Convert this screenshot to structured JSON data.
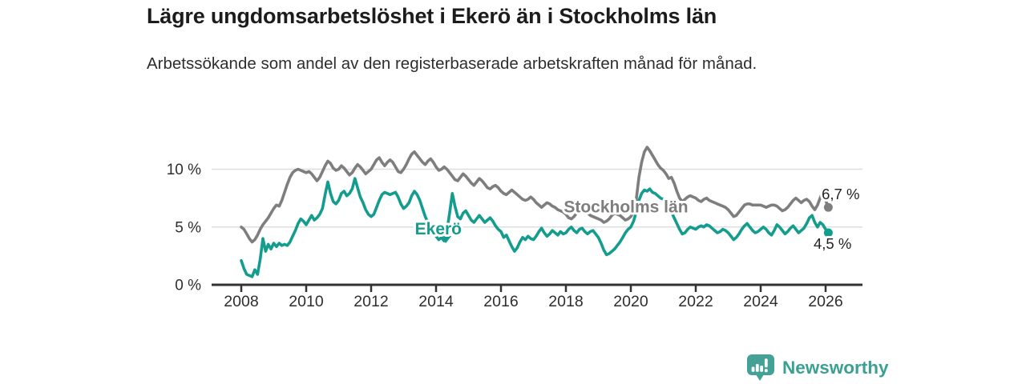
{
  "title": "Lägre ungdomsarbetslöshet i Ekerö än i Stockholms län",
  "subtitle": "Arbetssökande som andel av den registerbaserade arbetskraften månad för månad.",
  "brand": {
    "name": "Newsworthy",
    "color": "#3aa093",
    "icon": "bar-chart-bubble-icon"
  },
  "colors": {
    "ekero_line": "#149d8e",
    "stockholm_line": "#7e7e7e",
    "axis": "#333333",
    "grid": "#dedede",
    "text": "#2e2e2e"
  },
  "chart_data": {
    "type": "line",
    "title": "Lägre ungdomsarbetslöshet i Ekerö än i Stockholms län",
    "subtitle": "Arbetssökande som andel av den registerbaserade arbetskraften månad för månad.",
    "xlabel": "",
    "ylabel": "",
    "unit": "%",
    "x_start_year": 2008,
    "x_frequency": "monthly",
    "xlim": [
      2007.1,
      2027.1
    ],
    "ylim": [
      0,
      12.5
    ],
    "grid": "horizontal",
    "legend_position": "inline-labels",
    "x_ticks": [
      2008,
      2010,
      2012,
      2014,
      2016,
      2018,
      2020,
      2022,
      2024,
      2026
    ],
    "x_tick_labels": [
      "2008",
      "2010",
      "2012",
      "2014",
      "2016",
      "2018",
      "2020",
      "2022",
      "2024",
      "2026"
    ],
    "y_tick_values": [
      0,
      5,
      10
    ],
    "y_tick_labels": [
      "0 %",
      "5 %",
      "10 %"
    ],
    "series": [
      {
        "name": "Stockholms län",
        "color": "#7e7e7e",
        "end_value": 6.7,
        "end_label": "6,7 %",
        "values": [
          5.0,
          4.8,
          4.4,
          4.0,
          3.7,
          3.9,
          4.3,
          4.8,
          5.2,
          5.5,
          5.8,
          6.2,
          6.6,
          6.9,
          6.8,
          7.3,
          8.0,
          8.7,
          9.3,
          9.7,
          9.9,
          10.0,
          9.9,
          9.8,
          9.7,
          9.8,
          9.6,
          9.3,
          9.0,
          9.3,
          9.8,
          10.3,
          10.7,
          10.5,
          10.1,
          9.9,
          10.0,
          10.3,
          10.1,
          9.8,
          9.5,
          9.7,
          10.1,
          10.4,
          10.2,
          9.9,
          9.6,
          9.8,
          10.0,
          10.4,
          10.8,
          11.0,
          10.6,
          10.3,
          10.6,
          10.8,
          10.6,
          10.2,
          9.8,
          9.7,
          10.0,
          10.4,
          10.9,
          11.3,
          11.5,
          11.2,
          10.9,
          10.6,
          10.4,
          10.7,
          10.9,
          10.6,
          10.2,
          9.9,
          10.0,
          10.2,
          10.0,
          9.7,
          9.4,
          9.1,
          9.0,
          9.3,
          9.6,
          9.4,
          9.1,
          8.8,
          8.6,
          8.9,
          9.2,
          9.0,
          8.7,
          8.4,
          8.3,
          8.5,
          8.6,
          8.4,
          8.1,
          7.9,
          7.8,
          8.0,
          8.2,
          8.0,
          7.8,
          7.6,
          7.4,
          7.3,
          7.4,
          7.6,
          7.4,
          7.1,
          6.9,
          6.7,
          6.9,
          7.1,
          7.0,
          6.8,
          6.7,
          6.5,
          6.4,
          6.3,
          6.1,
          5.8,
          5.7,
          5.9,
          6.2,
          6.4,
          6.5,
          6.4,
          6.2,
          6.0,
          5.9,
          5.8,
          5.7,
          5.6,
          5.4,
          5.5,
          5.7,
          6.0,
          6.2,
          6.1,
          6.0,
          5.8,
          5.6,
          5.7,
          5.9,
          6.3,
          7.4,
          9.3,
          10.6,
          11.5,
          11.9,
          11.6,
          11.2,
          10.8,
          10.4,
          10.1,
          9.9,
          9.6,
          9.2,
          9.3,
          8.8,
          8.1,
          7.5,
          7.2,
          7.4,
          7.6,
          7.7,
          7.6,
          7.5,
          7.3,
          7.2,
          7.4,
          7.5,
          7.3,
          7.2,
          7.1,
          7.0,
          6.9,
          6.8,
          6.7,
          6.5,
          6.2,
          5.9,
          6.0,
          6.3,
          6.6,
          6.9,
          7.0,
          7.0,
          6.9,
          6.9,
          6.9,
          6.9,
          6.8,
          6.7,
          6.8,
          6.9,
          6.9,
          6.8,
          6.6,
          6.4,
          6.5,
          6.7,
          7.0,
          7.3,
          7.5,
          7.3,
          7.1,
          7.3,
          7.4,
          7.2,
          6.8,
          6.5,
          6.9,
          7.5,
          8.1,
          7.3,
          6.7
        ]
      },
      {
        "name": "Ekerö",
        "color": "#149d8e",
        "end_value": 4.5,
        "end_label": "4,5 %",
        "values": [
          2.1,
          1.4,
          0.9,
          0.8,
          0.7,
          1.3,
          0.9,
          2.2,
          4.0,
          2.9,
          3.5,
          3.1,
          3.6,
          3.3,
          3.6,
          3.4,
          3.5,
          3.4,
          3.7,
          4.2,
          4.7,
          5.3,
          5.7,
          5.5,
          5.2,
          5.6,
          6.0,
          5.6,
          5.8,
          6.1,
          6.6,
          7.8,
          8.9,
          7.9,
          7.2,
          7.0,
          7.3,
          7.9,
          8.1,
          7.7,
          7.9,
          8.3,
          9.2,
          8.4,
          7.6,
          7.1,
          6.5,
          6.1,
          5.9,
          6.1,
          6.7,
          7.3,
          7.8,
          8.0,
          7.9,
          7.8,
          7.9,
          8.0,
          7.6,
          7.0,
          6.6,
          6.8,
          7.1,
          7.7,
          8.1,
          7.8,
          7.3,
          6.6,
          5.9,
          5.4,
          4.9,
          4.5,
          4.2,
          3.9,
          4.1,
          3.8,
          4.6,
          6.2,
          7.9,
          6.8,
          5.9,
          5.7,
          6.2,
          6.4,
          6.0,
          5.6,
          5.4,
          5.7,
          6.0,
          5.7,
          5.4,
          5.6,
          5.8,
          5.5,
          5.1,
          4.8,
          4.6,
          4.1,
          4.3,
          3.8,
          3.3,
          2.9,
          3.2,
          3.7,
          4.1,
          3.9,
          4.2,
          4.0,
          3.9,
          4.2,
          4.6,
          4.9,
          4.5,
          4.2,
          4.4,
          4.7,
          4.5,
          4.3,
          4.6,
          4.4,
          4.5,
          4.8,
          5.0,
          4.7,
          4.5,
          4.8,
          4.9,
          4.6,
          4.4,
          4.6,
          4.7,
          4.4,
          4.1,
          3.6,
          3.0,
          2.6,
          2.7,
          2.9,
          3.1,
          3.4,
          3.7,
          4.1,
          4.5,
          4.8,
          5.0,
          5.5,
          6.3,
          7.3,
          7.9,
          8.2,
          8.1,
          8.3,
          8.0,
          7.9,
          7.7,
          7.5,
          7.4,
          7.2,
          6.8,
          6.3,
          5.8,
          5.3,
          4.8,
          4.4,
          4.5,
          4.8,
          5.0,
          4.9,
          4.8,
          5.0,
          5.1,
          5.0,
          5.2,
          5.1,
          4.9,
          4.7,
          4.5,
          4.6,
          4.8,
          4.7,
          4.5,
          4.2,
          3.9,
          4.1,
          4.4,
          4.8,
          5.1,
          5.3,
          5.0,
          4.7,
          4.5,
          4.6,
          4.8,
          5.0,
          4.8,
          4.5,
          4.3,
          4.7,
          5.2,
          5.0,
          4.7,
          4.4,
          4.6,
          4.9,
          5.1,
          4.8,
          4.5,
          4.7,
          4.9,
          5.3,
          5.8,
          6.0,
          5.4,
          5.0,
          5.4,
          5.2,
          4.8,
          4.5
        ]
      }
    ],
    "annotations": [
      {
        "text": "Stockholms län",
        "year": 2019.85,
        "value": 6.25,
        "color": "#7e7e7e",
        "anchor": "middle",
        "bold": true,
        "size": 21,
        "halo": true
      },
      {
        "text": "Ekerö",
        "year": 2014.07,
        "value": 4.35,
        "color": "#149d8e",
        "anchor": "middle",
        "bold": true,
        "size": 21,
        "halo": true,
        "pointer": {
          "year": 2014.3,
          "value": 3.6
        }
      },
      {
        "text": "6,7 %",
        "year": 2025.88,
        "value": 7.4,
        "color": "#222222",
        "anchor": "start",
        "bold": false,
        "size": 18.5,
        "halo": true
      },
      {
        "text": "4,5 %",
        "year": 2025.63,
        "value": 3.1,
        "color": "#222222",
        "anchor": "start",
        "bold": false,
        "size": 18.5,
        "halo": true
      }
    ]
  }
}
